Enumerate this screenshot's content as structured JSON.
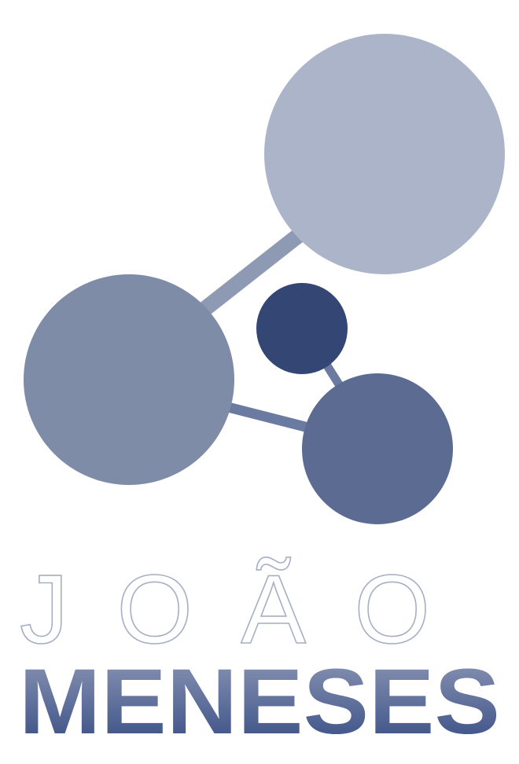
{
  "logo": {
    "colors": {
      "large_top_right": "#abb4c8",
      "large_left": "#7f8ca8",
      "small_center": "#334674",
      "medium_bottom": "#5b6b91",
      "link_light": "#8e9ab4",
      "link_dark": "#6b7aa0"
    }
  },
  "wordmark": {
    "first_name": "JOÃO",
    "last_name": "MENESES",
    "colors": {
      "first_name_stroke": "#a6afc4",
      "last_name_top": "#8e98b6",
      "last_name_bottom": "#334a82"
    }
  }
}
